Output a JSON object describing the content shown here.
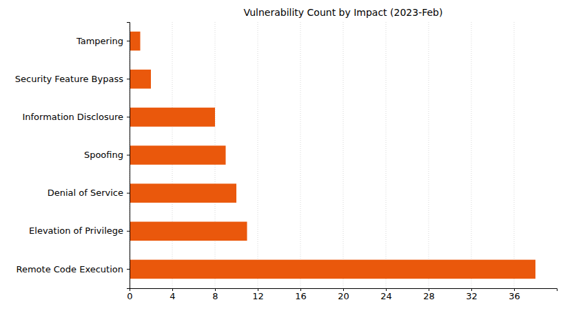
{
  "chart_data": {
    "type": "bar",
    "orientation": "horizontal",
    "title": "Vulnerability Count by Impact (2023-Feb)",
    "categories": [
      "Tampering",
      "Security Feature Bypass",
      "Information Disclosure",
      "Spoofing",
      "Denial of Service",
      "Elevation of Privilege",
      "Remote Code Execution"
    ],
    "values": [
      1,
      2,
      8,
      9,
      10,
      11,
      38
    ],
    "color": "#ea580c",
    "xlim": [
      0,
      40
    ],
    "xticks": [
      0,
      4,
      8,
      12,
      16,
      20,
      24,
      28,
      32,
      36
    ],
    "grid": true
  }
}
